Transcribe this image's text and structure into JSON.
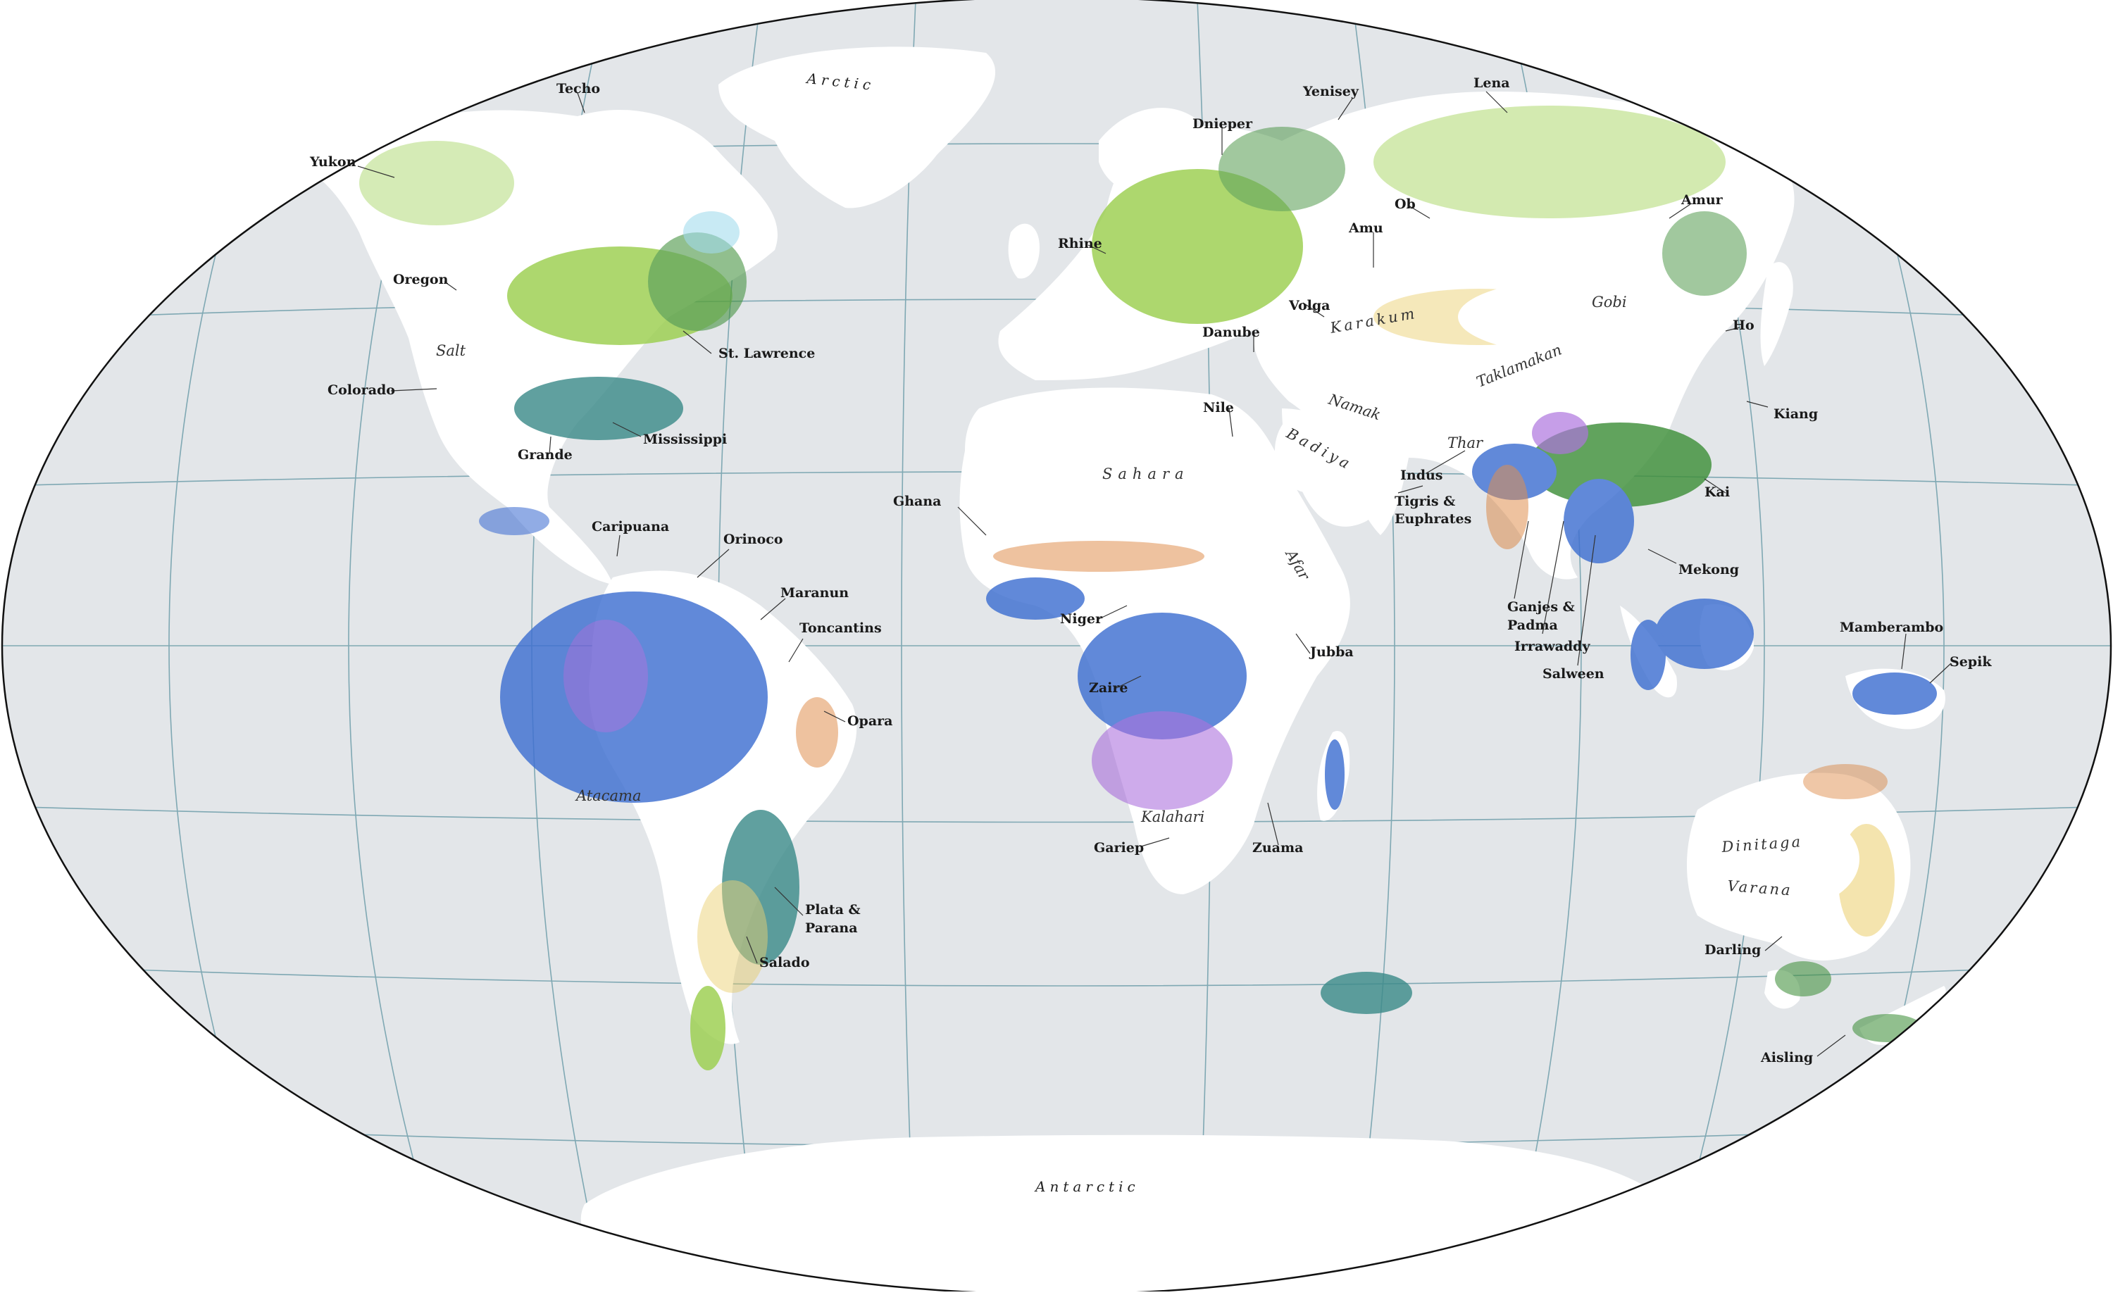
{
  "colors": {
    "ocean": "#e3e6e9",
    "land": "#ffffff",
    "graticule": "#7fa8b3",
    "outline": "#111111",
    "wet_blue": "#3f6fd1",
    "deep_green": "#3f8f3a",
    "light_green": "#9ccf4f",
    "purple": "#9b55d6",
    "orange": "#d9772a",
    "yellow": "#e7c85a",
    "teal": "#3d8c8a"
  },
  "oceans": [
    "Arctic",
    "Antarctic"
  ],
  "regions": [
    "Salt",
    "Sahara",
    "Gobi",
    "Taklamakan",
    "Karakum",
    "Namak",
    "Badiya",
    "Thar",
    "Afar",
    "Kalahari",
    "Atacama",
    "Dinitaga",
    "Varana"
  ],
  "rivers": [
    "Yukon",
    "Techo",
    "Oregon",
    "Colorado",
    "Grande",
    "St. Lawrence",
    "Mississippi",
    "Caripuana",
    "Orinoco",
    "Maranun",
    "Toncantins",
    "Opara",
    "Plata &",
    "Parana",
    "Salado",
    "Ghana",
    "Niger",
    "Zaire",
    "Gariep",
    "Zuama",
    "Jubba",
    "Rhine",
    "Dnieper",
    "Danube",
    "Volga",
    "Nile",
    "Amu",
    "Yenisey",
    "Ob",
    "Lena",
    "Amur",
    "Ho",
    "Kiang",
    "Kai",
    "Mekong",
    "Indus",
    "Tigris &",
    "Euphrates",
    "Ganjes &",
    "Padma",
    "Irrawaddy",
    "Salween",
    "Mamberambo",
    "Sepik",
    "Darling",
    "Aisling"
  ]
}
